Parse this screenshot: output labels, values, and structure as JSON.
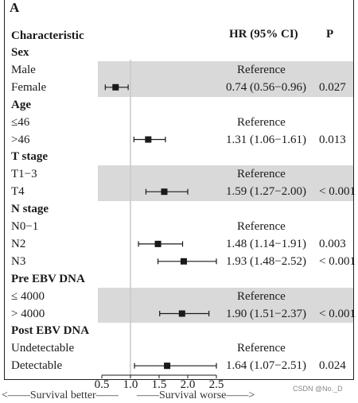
{
  "panel_label": "A",
  "headers": {
    "characteristic": "Characteristic",
    "hr": "HR (95% CI)",
    "p": "P"
  },
  "footer": {
    "left": "<——Survival better——",
    "right": "——Survival worse——>"
  },
  "watermark": "CSDN @No._D",
  "colors": {
    "band": "#d9d9d9",
    "ink": "#1a1a1a",
    "refline": "#c8c8c8"
  },
  "chart_data": {
    "type": "forest",
    "xlim": [
      0.5,
      2.5
    ],
    "xticks": [
      "0.5",
      "1.0",
      "1.5",
      "2.0",
      "2.5"
    ],
    "tick_values": [
      0.5,
      1.0,
      1.5,
      2.0,
      2.5
    ],
    "reference_value": 1.0,
    "reference_text": "Reference",
    "groups": [
      {
        "name": "Sex",
        "shaded": true,
        "rows": [
          {
            "label": "Male",
            "reference": true
          },
          {
            "label": "Female",
            "hr": 0.74,
            "lo": 0.56,
            "hi": 0.96,
            "hr_text": "0.74 (0.56−0.96)",
            "p": "0.027"
          }
        ]
      },
      {
        "name": "Age",
        "shaded": false,
        "rows": [
          {
            "label": "≤46",
            "reference": true
          },
          {
            "label": ">46",
            "hr": 1.31,
            "lo": 1.06,
            "hi": 1.61,
            "hr_text": "1.31 (1.06−1.61)",
            "p": "0.013"
          }
        ]
      },
      {
        "name": "T stage",
        "shaded": true,
        "rows": [
          {
            "label": "T1−3",
            "reference": true
          },
          {
            "label": "T4",
            "hr": 1.59,
            "lo": 1.27,
            "hi": 2.0,
            "hr_text": "1.59 (1.27−2.00)",
            "p": "< 0.001"
          }
        ]
      },
      {
        "name": "N stage",
        "shaded": false,
        "rows": [
          {
            "label": "N0−1",
            "reference": true
          },
          {
            "label": "N2",
            "hr": 1.48,
            "lo": 1.14,
            "hi": 1.91,
            "hr_text": "1.48 (1.14−1.91)",
            "p": "0.003"
          },
          {
            "label": "N3",
            "hr": 1.93,
            "lo": 1.48,
            "hi": 2.52,
            "hr_text": "1.93 (1.48−2.52)",
            "p": "< 0.001"
          }
        ]
      },
      {
        "name": "Pre EBV DNA",
        "shaded": true,
        "rows": [
          {
            "label": "≤ 4000",
            "reference": true
          },
          {
            "label": "> 4000",
            "hr": 1.9,
            "lo": 1.51,
            "hi": 2.37,
            "hr_text": "1.90 (1.51−2.37)",
            "p": "< 0.001"
          }
        ]
      },
      {
        "name": "Post EBV DNA",
        "shaded": false,
        "rows": [
          {
            "label": "Undetectable",
            "reference": true
          },
          {
            "label": "Detectable",
            "hr": 1.64,
            "lo": 1.07,
            "hi": 2.51,
            "hr_text": "1.64 (1.07−2.51)",
            "p": "0.024"
          }
        ]
      }
    ]
  }
}
